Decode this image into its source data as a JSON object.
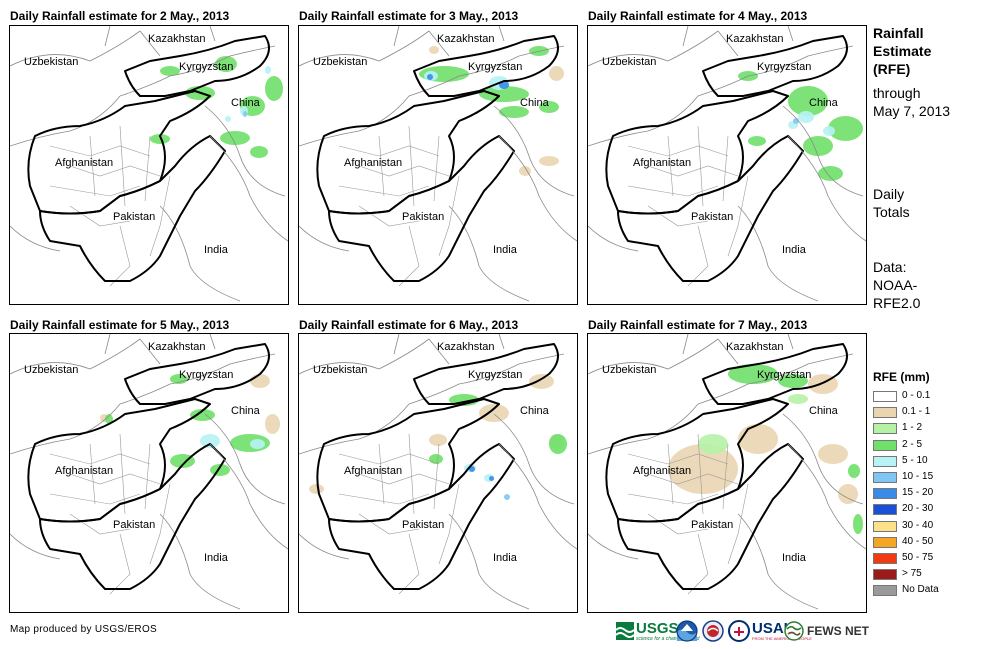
{
  "panels": [
    {
      "title": "Daily Rainfall estimate for 2 May., 2013"
    },
    {
      "title": "Daily Rainfall estimate for 3 May., 2013"
    },
    {
      "title": "Daily Rainfall estimate for 4 May., 2013"
    },
    {
      "title": "Daily Rainfall estimate for 5 May., 2013"
    },
    {
      "title": "Daily Rainfall estimate for 6 May., 2013"
    },
    {
      "title": "Daily Rainfall estimate for 7 May., 2013"
    }
  ],
  "country_labels": {
    "kazakhstan": "Kazakhstan",
    "uzbekistan": "Uzbekistan",
    "kyrgyzstan": "Kyrgyzstan",
    "china": "China",
    "afghanistan": "Afghanistan",
    "pakistan": "Pakistan",
    "india": "India"
  },
  "sidebar": {
    "title_line1": "Rainfall",
    "title_line2": "Estimate",
    "title_line3": "(RFE)",
    "through_line1": "through",
    "through_line2": "May 7, 2013",
    "totals_line1": "Daily",
    "totals_line2": "Totals",
    "data_line1": "Data:",
    "data_line2": "NOAA-",
    "data_line3": "RFE2.0"
  },
  "legend": {
    "title": "RFE (mm)",
    "items": [
      {
        "label": "0 - 0.1",
        "color": "#ffffff"
      },
      {
        "label": "0.1 - 1",
        "color": "#ead5b1"
      },
      {
        "label": "1 - 2",
        "color": "#b6f2a6"
      },
      {
        "label": "2 - 5",
        "color": "#6fe06a"
      },
      {
        "label": "5 - 10",
        "color": "#b7f2f5"
      },
      {
        "label": "10 - 15",
        "color": "#7fc6f5"
      },
      {
        "label": "15 - 20",
        "color": "#3a8be8"
      },
      {
        "label": "20 - 30",
        "color": "#1a4fd6"
      },
      {
        "label": "30 - 40",
        "color": "#fbe28a"
      },
      {
        "label": "40 - 50",
        "color": "#f5a623"
      },
      {
        "label": "50 - 75",
        "color": "#f03a0f"
      },
      {
        "label": "> 75",
        "color": "#9b1b1b"
      },
      {
        "label": "No Data",
        "color": "#9a9a9a"
      }
    ]
  },
  "credit": "Map produced by USGS/EROS",
  "logos": {
    "usgs": "USGS",
    "usgs_tagline": "science for a changing world",
    "usaid": "USAID",
    "usaid_tagline": "FROM THE AMERICAN PEOPLE",
    "fewsnet": "FEWS NET"
  }
}
